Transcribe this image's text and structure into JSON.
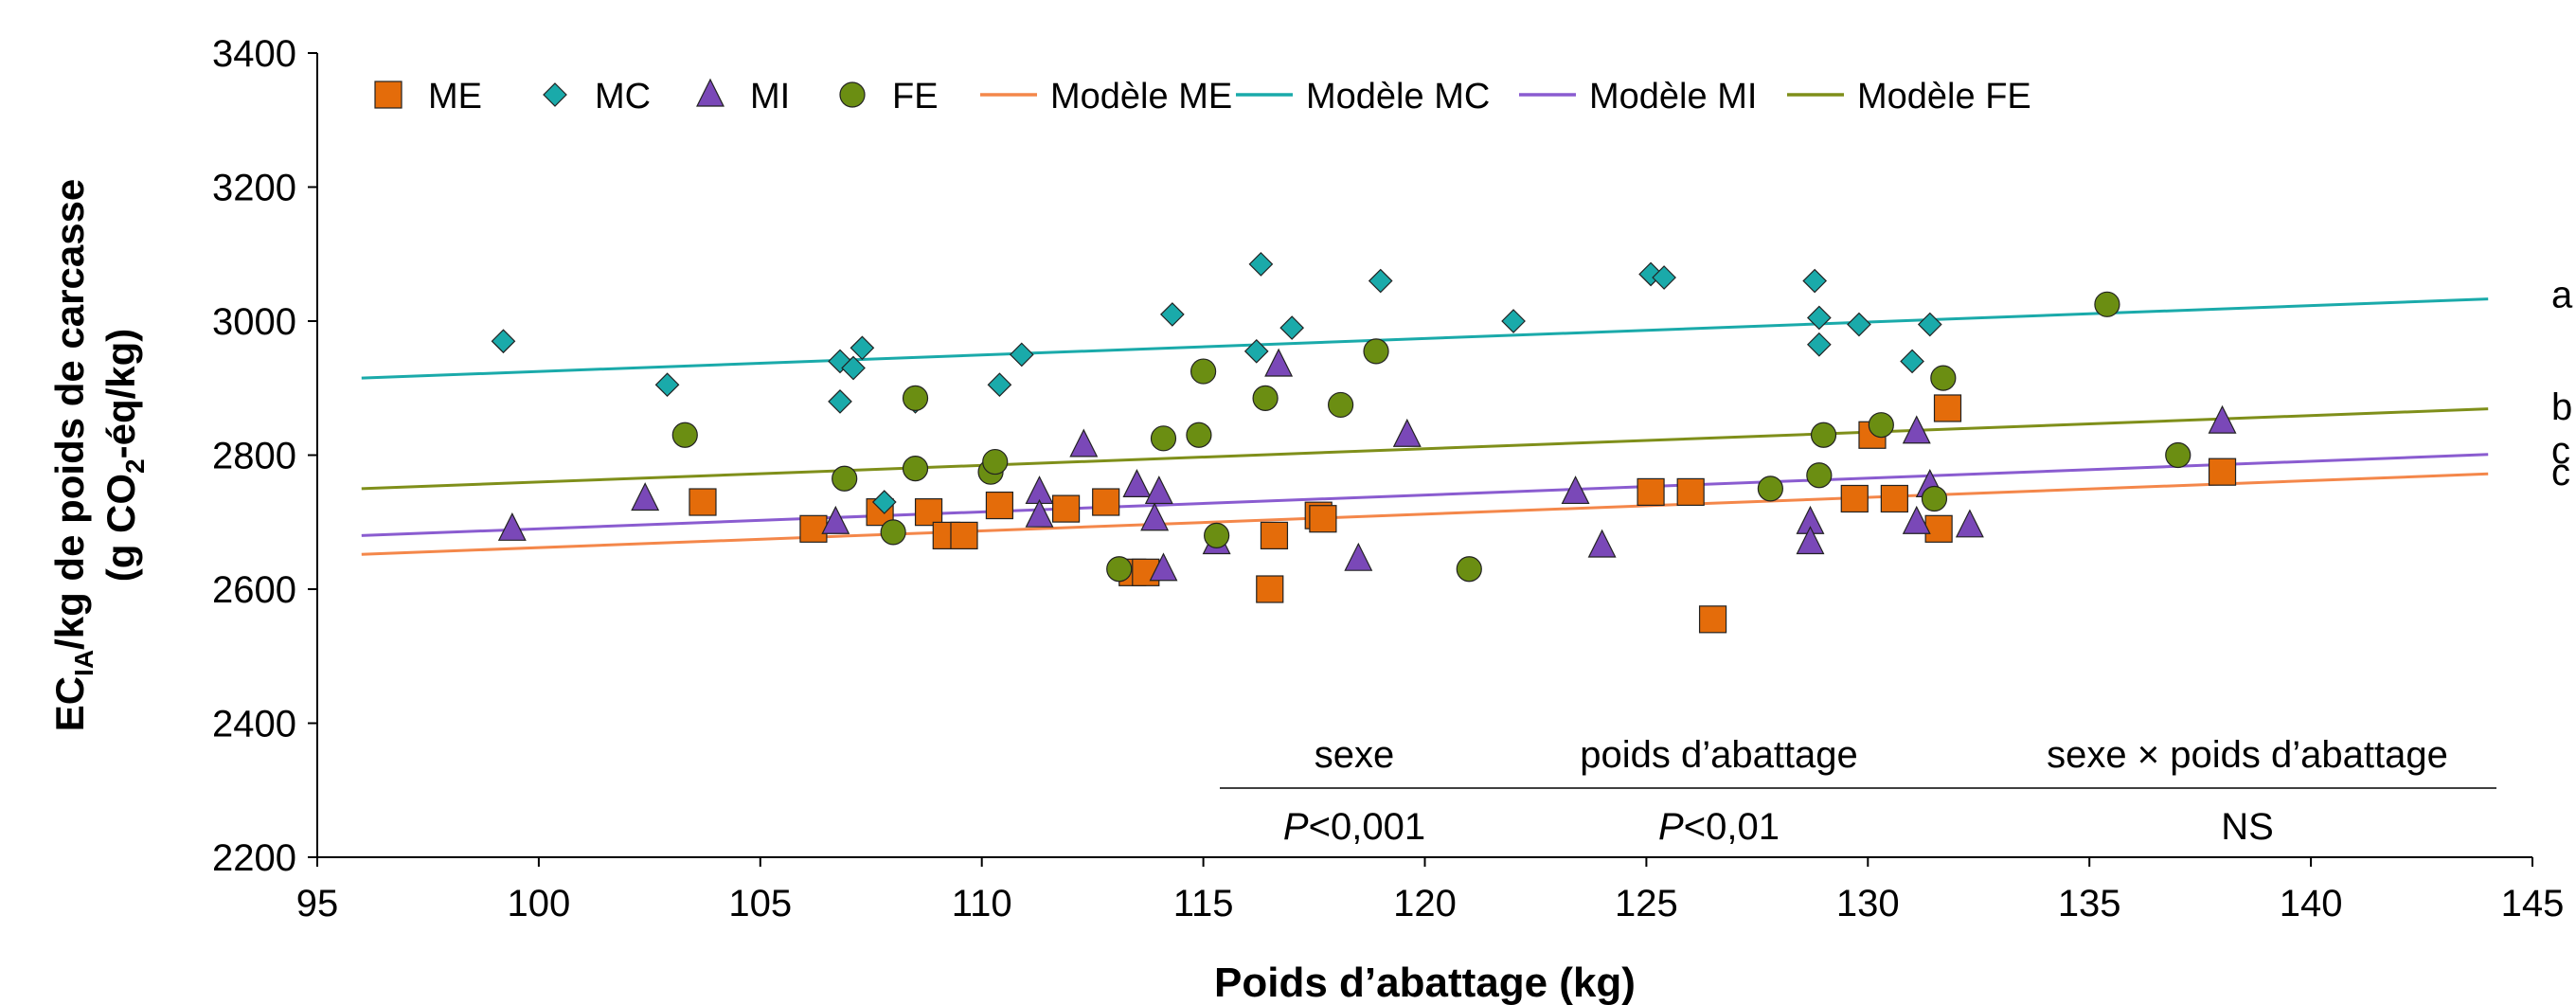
{
  "chart_data": {
    "type": "scatter",
    "xlabel": "Poids d’abattage (kg)",
    "ylabel_line1": {
      "main": "EC",
      "sub": "IA",
      "rest": "/kg de poids de carcasse"
    },
    "ylabel_line2": {
      "main": "(g CO",
      "sub": "2",
      "rest": "-éq/kg)"
    },
    "xlim": [
      95,
      145
    ],
    "ylim": [
      2200,
      3400
    ],
    "xticks": [
      95,
      100,
      105,
      110,
      115,
      120,
      125,
      130,
      135,
      140,
      145
    ],
    "yticks": [
      2200,
      2400,
      2600,
      2800,
      3000,
      3200,
      3400
    ],
    "legend_position": "top",
    "series": [
      {
        "name": "ME",
        "marker": "square",
        "color": "#E46C0A",
        "points": [
          [
            103.7,
            2730
          ],
          [
            106.2,
            2690
          ],
          [
            107.7,
            2715
          ],
          [
            108.8,
            2715
          ],
          [
            109.2,
            2680
          ],
          [
            109.6,
            2680
          ],
          [
            110.4,
            2725
          ],
          [
            111.9,
            2720
          ],
          [
            112.8,
            2730
          ],
          [
            113.4,
            2625
          ],
          [
            113.7,
            2625
          ],
          [
            116.5,
            2600
          ],
          [
            116.6,
            2680
          ],
          [
            117.6,
            2710
          ],
          [
            117.7,
            2705
          ],
          [
            125.1,
            2745
          ],
          [
            126.0,
            2745
          ],
          [
            126.5,
            2555
          ],
          [
            129.7,
            2735
          ],
          [
            130.1,
            2830
          ],
          [
            130.6,
            2735
          ],
          [
            131.6,
            2690
          ],
          [
            131.8,
            2870
          ],
          [
            138.0,
            2775
          ]
        ]
      },
      {
        "name": "MC",
        "marker": "diamond",
        "color": "#1AAAAA",
        "points": [
          [
            99.2,
            2970
          ],
          [
            102.9,
            2905
          ],
          [
            106.8,
            2940
          ],
          [
            106.8,
            2880
          ],
          [
            107.1,
            2930
          ],
          [
            107.3,
            2960
          ],
          [
            107.8,
            2730
          ],
          [
            108.5,
            2880
          ],
          [
            110.4,
            2905
          ],
          [
            110.9,
            2950
          ],
          [
            114.3,
            3010
          ],
          [
            116.2,
            2955
          ],
          [
            116.3,
            3085
          ],
          [
            117.0,
            2990
          ],
          [
            119.0,
            3060
          ],
          [
            122.0,
            3000
          ],
          [
            125.1,
            3070
          ],
          [
            125.4,
            3065
          ],
          [
            128.8,
            3060
          ],
          [
            128.9,
            3005
          ],
          [
            128.9,
            2965
          ],
          [
            129.8,
            2995
          ],
          [
            131.0,
            2940
          ],
          [
            131.4,
            2995
          ]
        ]
      },
      {
        "name": "MI",
        "marker": "triangle",
        "color": "#7A48B8",
        "points": [
          [
            99.4,
            2690
          ],
          [
            102.4,
            2735
          ],
          [
            106.7,
            2700
          ],
          [
            111.3,
            2745
          ],
          [
            111.3,
            2710
          ],
          [
            112.3,
            2815
          ],
          [
            113.5,
            2755
          ],
          [
            113.9,
            2705
          ],
          [
            114.0,
            2745
          ],
          [
            114.1,
            2630
          ],
          [
            115.3,
            2670
          ],
          [
            116.7,
            2935
          ],
          [
            118.5,
            2645
          ],
          [
            119.6,
            2830
          ],
          [
            123.4,
            2745
          ],
          [
            124.0,
            2665
          ],
          [
            128.7,
            2700
          ],
          [
            128.7,
            2670
          ],
          [
            131.1,
            2835
          ],
          [
            131.1,
            2700
          ],
          [
            131.4,
            2755
          ],
          [
            132.3,
            2695
          ],
          [
            138.0,
            2850
          ]
        ]
      },
      {
        "name": "FE",
        "marker": "circle",
        "color": "#6B8E12",
        "points": [
          [
            103.3,
            2830
          ],
          [
            106.9,
            2765
          ],
          [
            108.0,
            2685
          ],
          [
            108.5,
            2885
          ],
          [
            108.5,
            2780
          ],
          [
            110.2,
            2775
          ],
          [
            110.3,
            2790
          ],
          [
            113.1,
            2630
          ],
          [
            114.1,
            2825
          ],
          [
            114.9,
            2830
          ],
          [
            115.0,
            2925
          ],
          [
            115.3,
            2680
          ],
          [
            116.4,
            2885
          ],
          [
            118.1,
            2875
          ],
          [
            118.9,
            2955
          ],
          [
            121.0,
            2630
          ],
          [
            127.8,
            2750
          ],
          [
            128.9,
            2770
          ],
          [
            129.0,
            2830
          ],
          [
            130.3,
            2845
          ],
          [
            131.5,
            2735
          ],
          [
            131.7,
            2915
          ],
          [
            135.4,
            3025
          ],
          [
            137.0,
            2800
          ]
        ]
      }
    ],
    "lines": [
      {
        "name": "Modèle ME",
        "color": "#F4874A",
        "x": [
          96,
          144
        ],
        "y": [
          2652,
          2772
        ]
      },
      {
        "name": "Modèle MC",
        "color": "#1AAAAA",
        "x": [
          96,
          144
        ],
        "y": [
          2915,
          3033
        ]
      },
      {
        "name": "Modèle MI",
        "color": "#8A5CD0",
        "x": [
          96,
          144
        ],
        "y": [
          2680,
          2801
        ]
      },
      {
        "name": "Modèle FE",
        "color": "#7F8F1A",
        "x": [
          96,
          144
        ],
        "y": [
          2750,
          2869
        ]
      }
    ],
    "line_letters": [
      {
        "text": "a",
        "y": 3040
      },
      {
        "text": "b",
        "y": 2873
      },
      {
        "text": "c",
        "y": 2808
      },
      {
        "text": "c",
        "y": 2775
      }
    ],
    "stats_table": {
      "headers": [
        "sexe",
        "poids d’abattage",
        "sexe × poids d’abattage"
      ],
      "values": [
        {
          "italic": "P",
          "rest": "<0,001"
        },
        {
          "italic": "P",
          "rest": "<0,01"
        },
        {
          "italic": "",
          "rest": "NS"
        }
      ]
    }
  }
}
